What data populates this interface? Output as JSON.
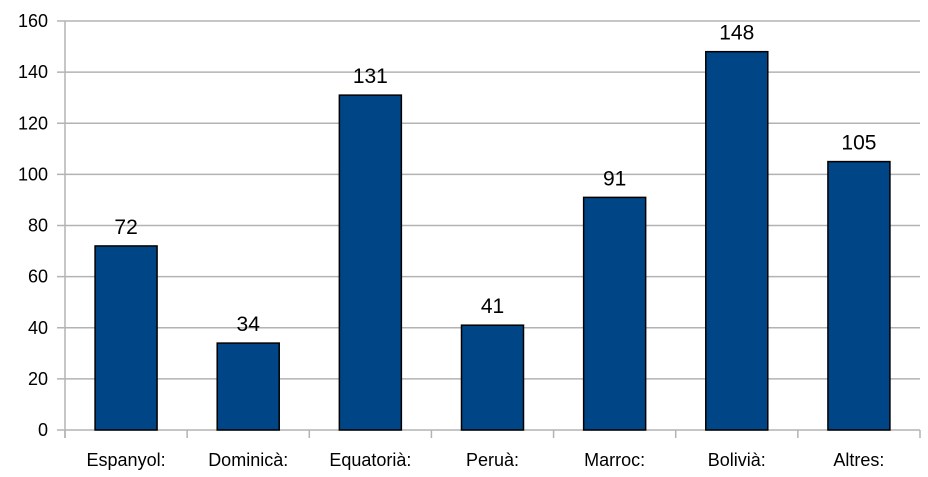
{
  "chart_data": {
    "type": "bar",
    "categories": [
      "Espanyol:",
      "Dominicà:",
      "Equatorià:",
      "Peruà:",
      "Marroc:",
      "Bolivià:",
      "Altres:"
    ],
    "values": [
      72,
      34,
      131,
      41,
      91,
      148,
      105
    ],
    "title": "",
    "xlabel": "",
    "ylabel": "",
    "ylim": [
      0,
      160
    ],
    "yticks": [
      0,
      20,
      40,
      60,
      80,
      100,
      120,
      140,
      160
    ],
    "grid": true,
    "legend": "none",
    "data_labels": true,
    "colors": {
      "bar_fill": "#004586",
      "bar_stroke": "#000000",
      "grid": "#b3b3b3",
      "axis": "#b3b3b3",
      "text": "#000000"
    }
  }
}
